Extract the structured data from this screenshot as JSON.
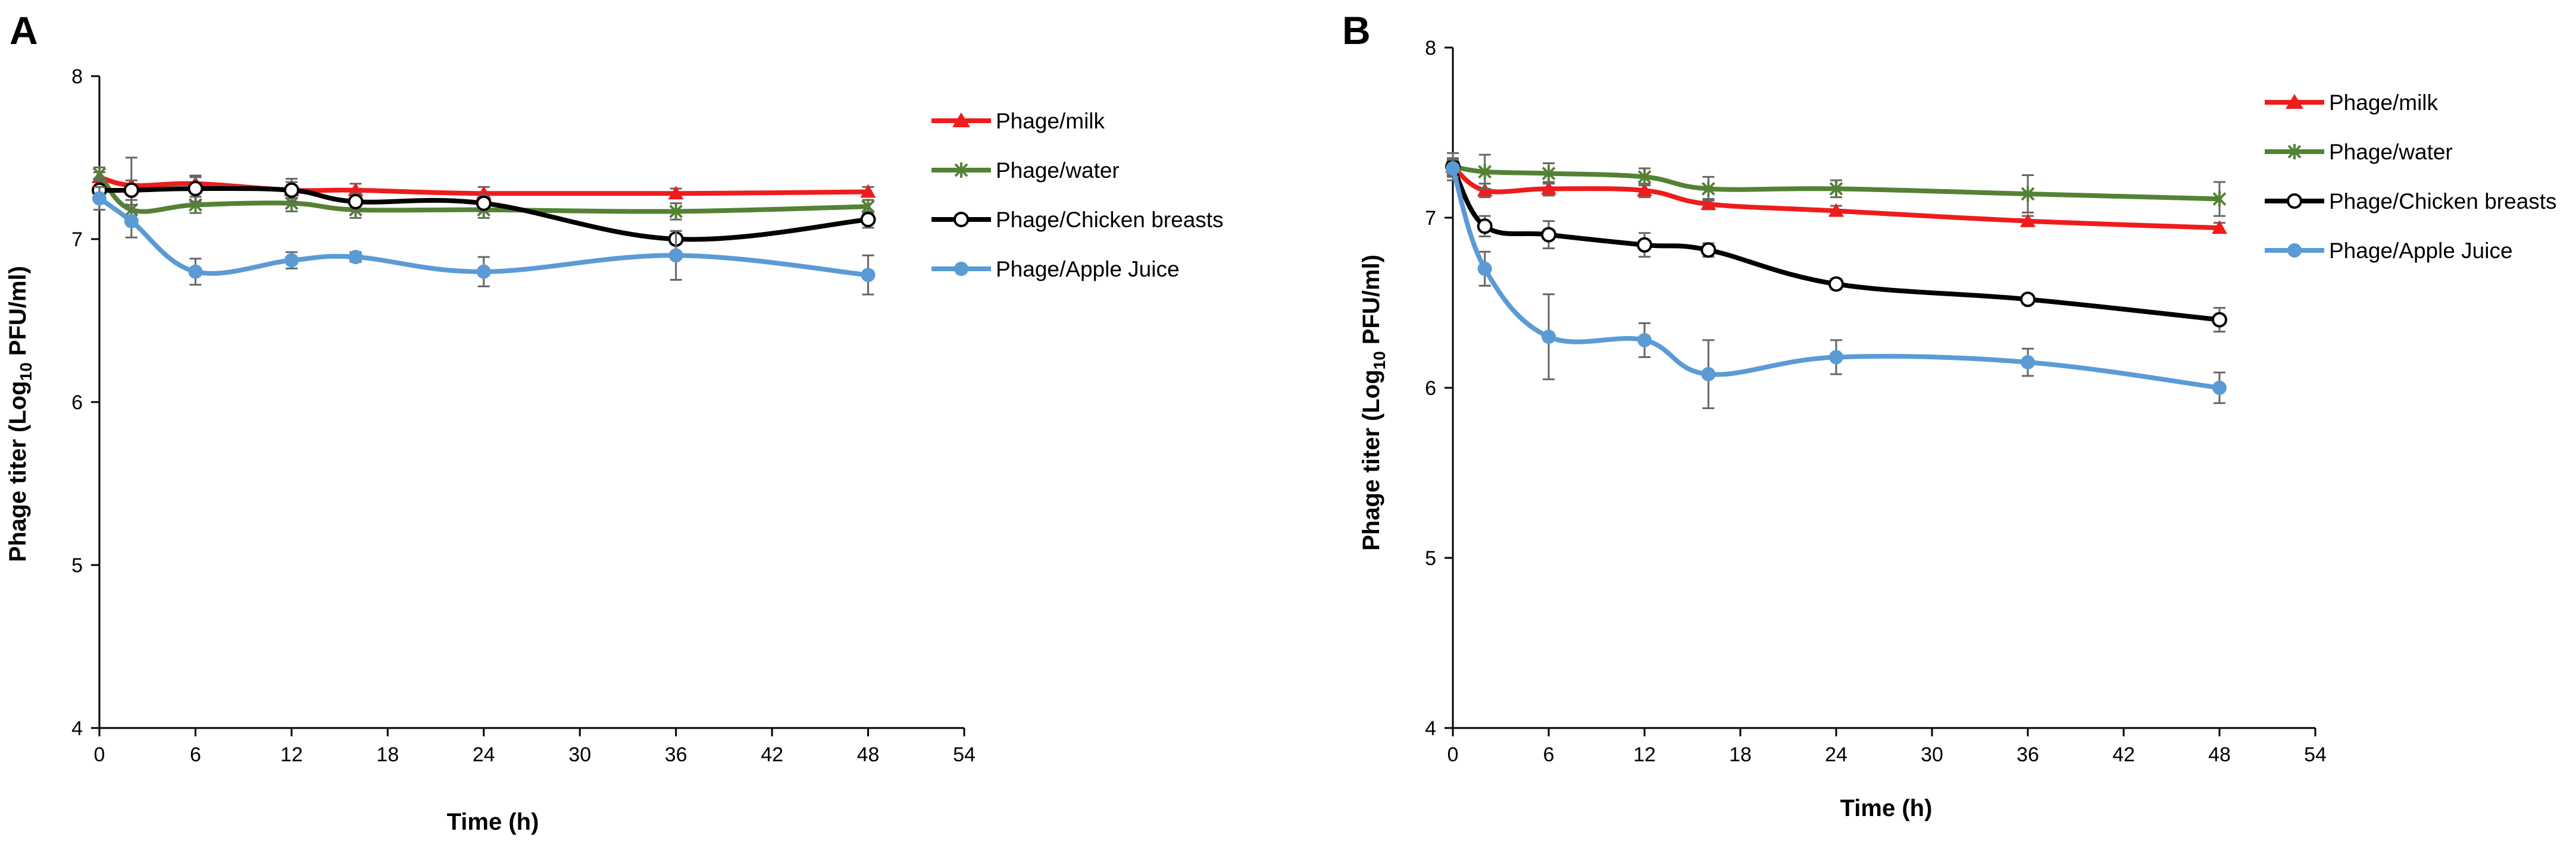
{
  "chart_data": [
    {
      "panel": "A",
      "type": "line",
      "xlabel": "Time (h)",
      "ylabel_main": "Phage titer (Log",
      "ylabel_sub": "10",
      "ylabel_tail": " PFU/ml)",
      "xlim": [
        0,
        54
      ],
      "ylim": [
        4,
        8
      ],
      "xticks": [
        0,
        6,
        12,
        18,
        24,
        30,
        36,
        42,
        48,
        54
      ],
      "yticks": [
        4,
        5,
        6,
        7,
        8
      ],
      "grid": false,
      "legend_position": "top-right",
      "series": [
        {
          "name": "Phage/milk",
          "color": "#ee1c1c",
          "marker": "triangle",
          "x": [
            0,
            2,
            6,
            12,
            16,
            24,
            36,
            48
          ],
          "values": [
            7.38,
            7.33,
            7.34,
            7.3,
            7.3,
            7.28,
            7.28,
            7.29
          ],
          "errors": [
            0.03,
            0.03,
            0.04,
            0.05,
            0.04,
            0.04,
            0.03,
            0.03
          ]
        },
        {
          "name": "Phage/water",
          "color": "#548235",
          "marker": "star",
          "x": [
            0,
            2,
            6,
            12,
            16,
            24,
            36,
            48
          ],
          "values": [
            7.4,
            7.18,
            7.21,
            7.22,
            7.18,
            7.18,
            7.17,
            7.2
          ],
          "errors": [
            0.04,
            0.06,
            0.05,
            0.05,
            0.05,
            0.05,
            0.05,
            0.04
          ]
        },
        {
          "name": "Phage/Chicken breasts",
          "color": "#000000",
          "marker": "open-circle",
          "x": [
            0,
            2,
            6,
            12,
            16,
            24,
            36,
            48
          ],
          "values": [
            7.3,
            7.3,
            7.31,
            7.3,
            7.23,
            7.22,
            7.0,
            7.12
          ],
          "errors": [
            0.07,
            0.2,
            0.08,
            0.07,
            0.05,
            0.05,
            0.03,
            0.05
          ]
        },
        {
          "name": "Phage/Apple Juice",
          "color": "#5b9bd5",
          "marker": "circle",
          "x": [
            0,
            2,
            6,
            12,
            16,
            24,
            36,
            48
          ],
          "values": [
            7.25,
            7.11,
            6.8,
            6.87,
            6.89,
            6.8,
            6.9,
            6.78
          ],
          "errors": [
            0.07,
            0.1,
            0.08,
            0.05,
            0.03,
            0.09,
            0.15,
            0.12
          ]
        }
      ]
    },
    {
      "panel": "B",
      "type": "line",
      "xlabel": "Time (h)",
      "ylabel_main": "Phage titer (Log",
      "ylabel_sub": "10",
      "ylabel_tail": " PFU/ml)",
      "xlim": [
        0,
        54
      ],
      "ylim": [
        4,
        8
      ],
      "xticks": [
        0,
        6,
        12,
        18,
        24,
        30,
        36,
        42,
        48,
        54
      ],
      "yticks": [
        4,
        5,
        6,
        7,
        8
      ],
      "grid": false,
      "legend_position": "top-right",
      "series": [
        {
          "name": "Phage/milk",
          "color": "#ee1c1c",
          "marker": "triangle",
          "x": [
            0,
            2,
            6,
            12,
            16,
            24,
            36,
            48
          ],
          "values": [
            7.3,
            7.16,
            7.17,
            7.16,
            7.08,
            7.04,
            6.98,
            6.94
          ],
          "errors": [
            0.04,
            0.04,
            0.04,
            0.04,
            0.03,
            0.03,
            0.03,
            0.03
          ]
        },
        {
          "name": "Phage/water",
          "color": "#548235",
          "marker": "star",
          "x": [
            0,
            2,
            6,
            12,
            16,
            24,
            36,
            48
          ],
          "values": [
            7.3,
            7.27,
            7.26,
            7.24,
            7.17,
            7.17,
            7.14,
            7.11
          ],
          "errors": [
            0.08,
            0.1,
            0.06,
            0.05,
            0.07,
            0.05,
            0.11,
            0.1
          ]
        },
        {
          "name": "Phage/Chicken breasts",
          "color": "#000000",
          "marker": "open-circle",
          "x": [
            0,
            2,
            6,
            12,
            16,
            24,
            36,
            48
          ],
          "values": [
            7.3,
            6.95,
            6.9,
            6.84,
            6.81,
            6.61,
            6.52,
            6.4
          ],
          "errors": [
            0.05,
            0.06,
            0.08,
            0.07,
            0.04,
            0.03,
            0.02,
            0.07
          ]
        },
        {
          "name": "Phage/Apple Juice",
          "color": "#5b9bd5",
          "marker": "circle",
          "x": [
            0,
            2,
            6,
            12,
            16,
            24,
            36,
            48
          ],
          "values": [
            7.29,
            6.7,
            6.3,
            6.28,
            6.08,
            6.18,
            6.15,
            6.0
          ],
          "errors": [
            0.05,
            0.1,
            0.25,
            0.1,
            0.2,
            0.1,
            0.08,
            0.09
          ]
        }
      ]
    }
  ]
}
